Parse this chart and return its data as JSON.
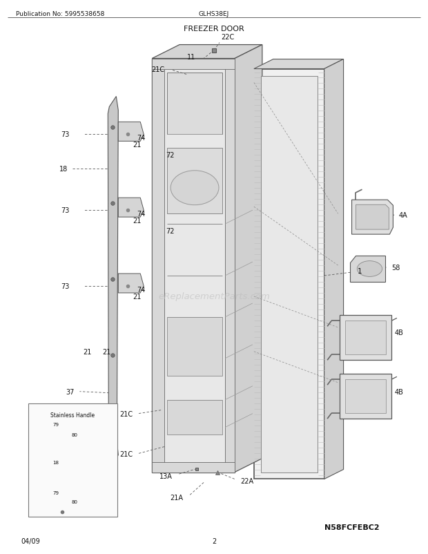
{
  "title": "FREEZER DOOR",
  "pub_no": "Publication No: 5995538658",
  "model": "GLHS38EJ",
  "page": "2",
  "date": "04/09",
  "diagram_code": "N58FCFEBC2",
  "watermark": "eReplacementParts.com",
  "bg_color": "#ffffff",
  "line_color": "#333333",
  "label_color": "#111111"
}
